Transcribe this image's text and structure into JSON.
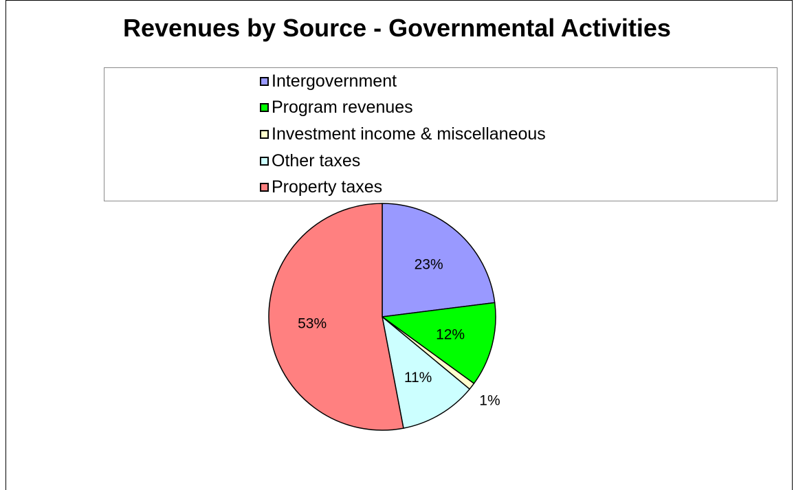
{
  "chart_data": {
    "type": "pie",
    "title": "Revenues by Source - Governmental Activities",
    "legend_position": "top",
    "slices": [
      {
        "name": "Intergovernment",
        "value": 23,
        "label": "23%",
        "color": "#9999ff"
      },
      {
        "name": "Program revenues",
        "value": 12,
        "label": "12%",
        "color": "#00ff00"
      },
      {
        "name": "Investment income & miscellaneous",
        "value": 1,
        "label": "1%",
        "color": "#ffffcc"
      },
      {
        "name": "Other taxes",
        "value": 11,
        "label": "11%",
        "color": "#ccffff"
      },
      {
        "name": "Property taxes",
        "value": 53,
        "label": "53%",
        "color": "#ff8080"
      }
    ]
  }
}
